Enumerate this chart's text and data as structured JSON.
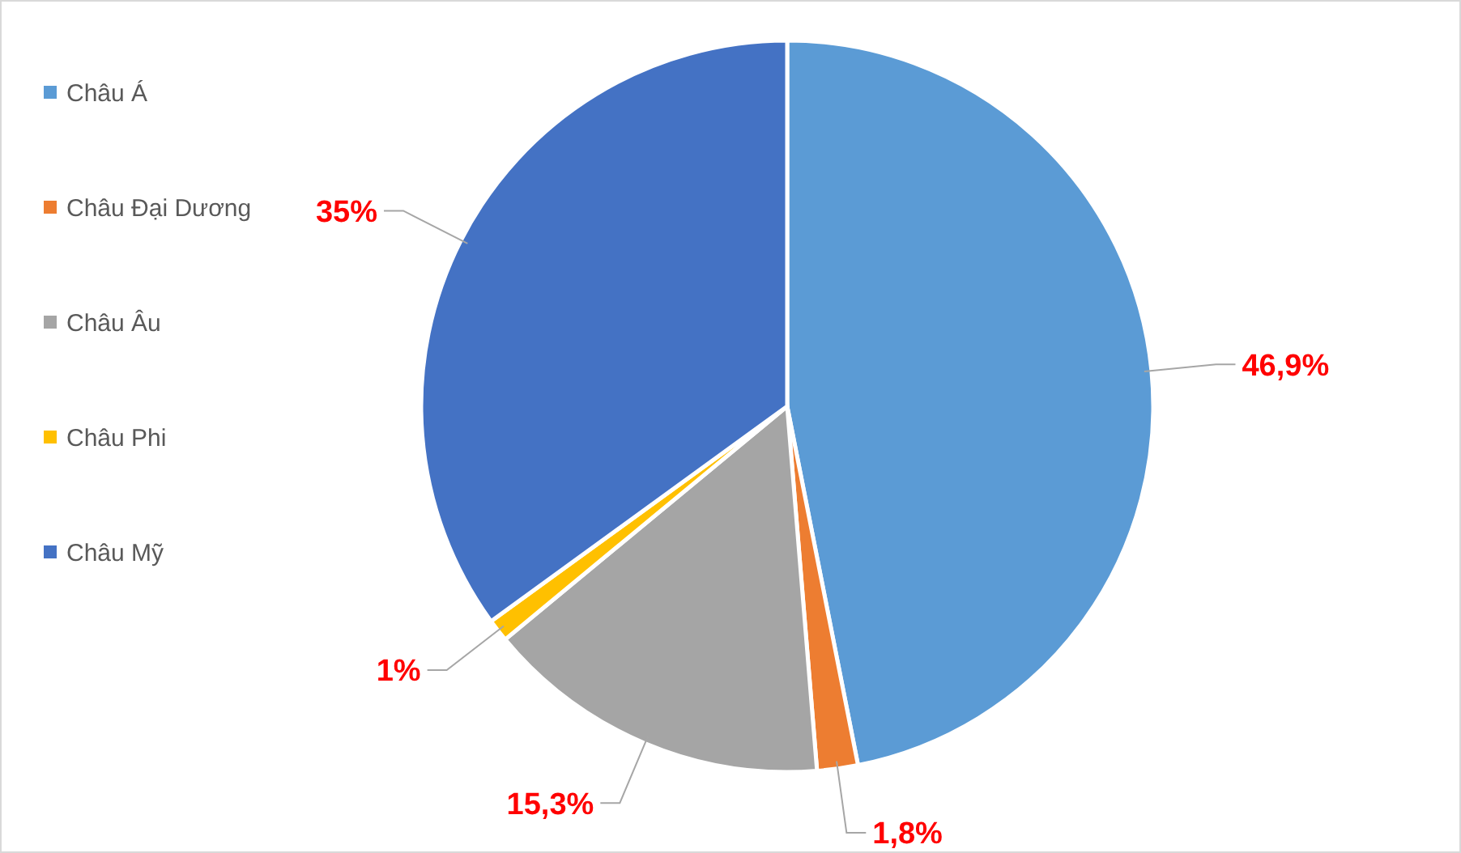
{
  "chart_data": {
    "type": "pie",
    "categories": [
      "Châu Á",
      "Châu Đại Dương",
      "Châu Âu",
      "Châu Phi",
      "Châu Mỹ"
    ],
    "values": [
      46.9,
      1.8,
      15.3,
      1,
      35
    ],
    "colors": [
      "#5b9bd5",
      "#ed7d31",
      "#a5a5a5",
      "#ffc000",
      "#4472c4"
    ],
    "value_labels": [
      "46,9%",
      "1,8%",
      "15,3%",
      "1%",
      "35%"
    ],
    "legend": "left"
  }
}
